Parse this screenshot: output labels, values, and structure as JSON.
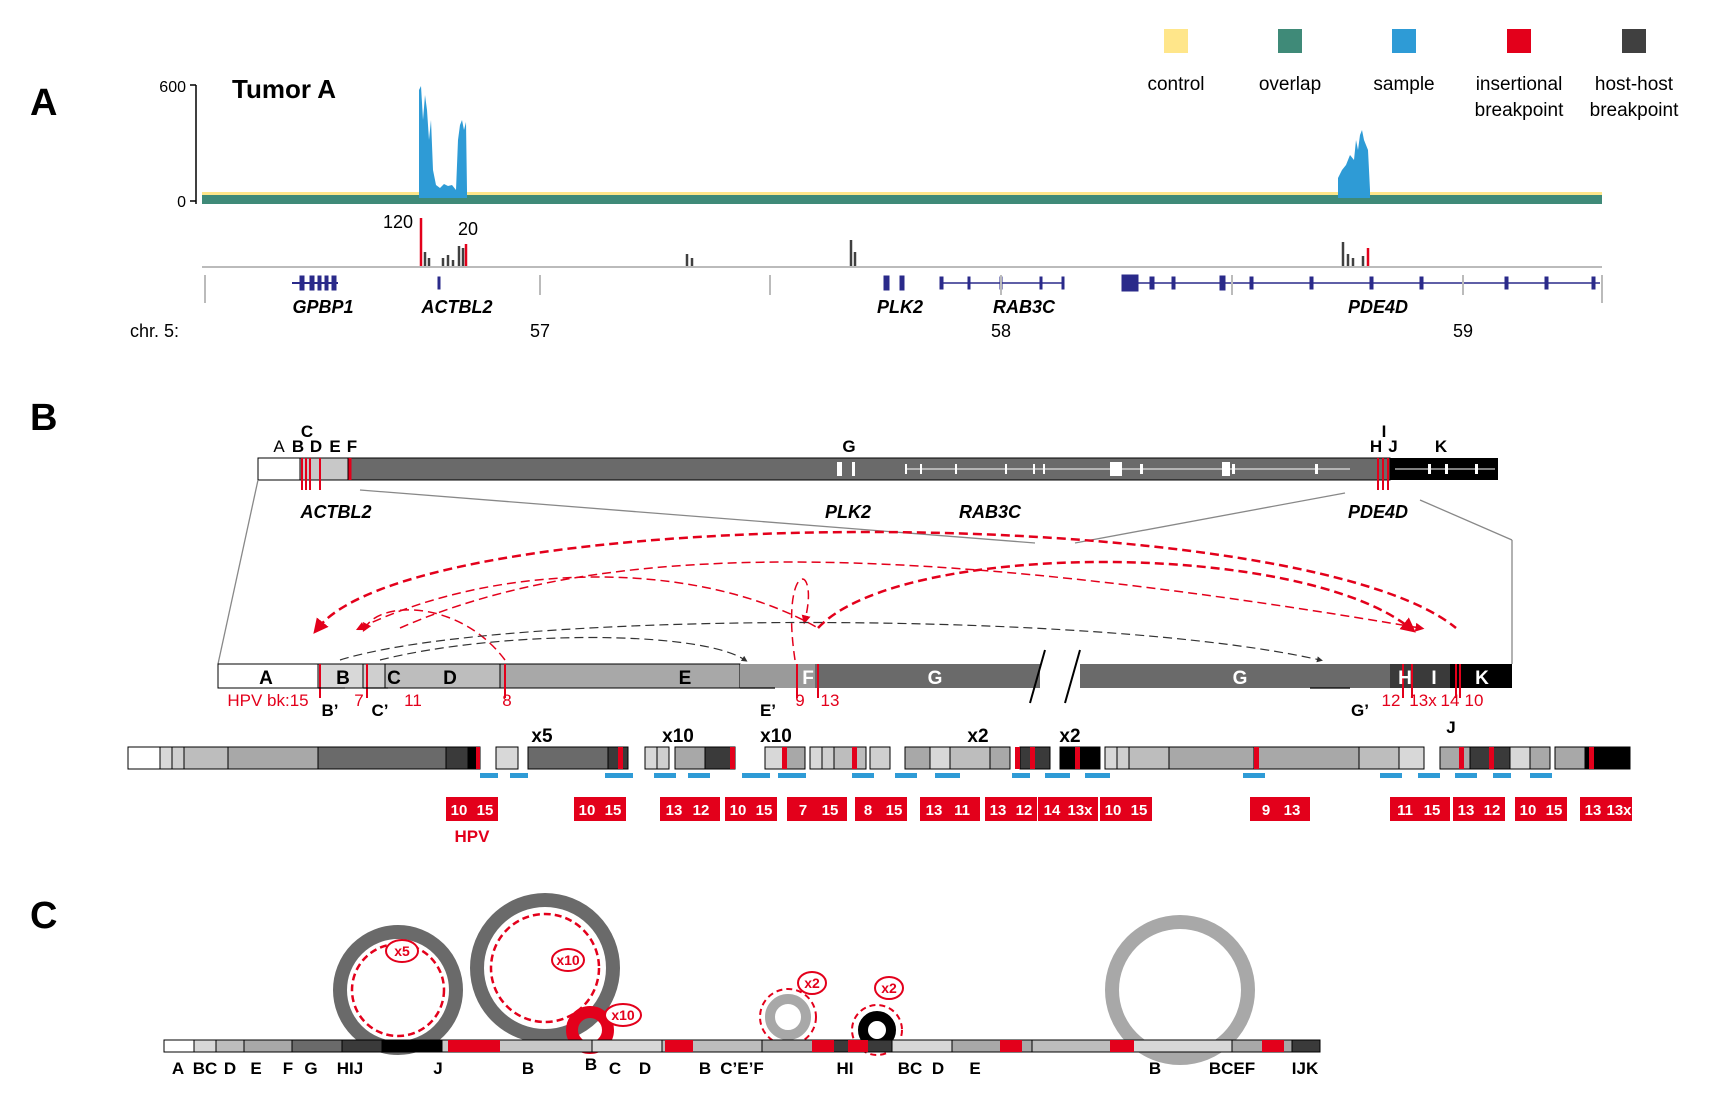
{
  "panel_labels": [
    "A",
    "B",
    "C"
  ],
  "panelA": {
    "title": "Tumor A",
    "y_ticks": [
      "600",
      "0"
    ],
    "breakpoint_counts": [
      "120",
      "20"
    ],
    "genes": [
      "GPBP1",
      "ACTBL2",
      "PLK2",
      "RAB3C",
      "PDE4D"
    ],
    "chr_label": "chr. 5:",
    "chr_ticks": [
      "57",
      "58",
      "59"
    ],
    "legend": [
      {
        "label": "control",
        "color": "#ffe68a"
      },
      {
        "label": "overlap",
        "color": "#3f8a78"
      },
      {
        "label": "sample",
        "color": "#2e9bd6"
      },
      {
        "label": "insertional",
        "label2": "breakpoint",
        "color": "#e3001b"
      },
      {
        "label": "host-host",
        "label2": "breakpoint",
        "color": "#404040"
      }
    ]
  },
  "chart_data": {
    "type": "area",
    "title": "Tumor A",
    "ylim": [
      0,
      600
    ],
    "series": [
      {
        "name": "sample",
        "peaks": [
          {
            "gene": "ACTBL2 left",
            "values": [
              550,
              600,
              420,
              300
            ]
          },
          {
            "gene": "ACTBL2 right",
            "values": [
              400,
              420,
              380
            ]
          },
          {
            "gene": "PDE4D",
            "values": [
              120,
              200,
              300,
              370,
              400
            ]
          }
        ]
      },
      {
        "name": "control",
        "baseline": 8
      },
      {
        "name": "overlap",
        "baseline": 6
      }
    ],
    "breakpoint_labels": [
      "120",
      "20"
    ]
  },
  "panelB": {
    "top_segments": [
      "A",
      "B",
      "C",
      "D",
      "E",
      "F",
      "G",
      "H",
      "I",
      "J",
      "K"
    ],
    "top_genes": [
      "ACTBL2",
      "PLK2",
      "RAB3C",
      "PDE4D"
    ],
    "bottom_segments": [
      "A",
      "B",
      "C",
      "D",
      "E",
      "F",
      "G",
      "G",
      "H",
      "I",
      "K"
    ],
    "primes": [
      "B’",
      "C’",
      "E’",
      "G’",
      "J"
    ],
    "bk_label": "HPV bk:15",
    "bk_numbers": [
      "7",
      "11",
      "8",
      "9",
      "13",
      "12",
      "13x",
      "14",
      "10"
    ],
    "multipliers": [
      "x5",
      "x10",
      "x10",
      "x2",
      "x2"
    ],
    "hpv_label": "HPV",
    "hpv_pairs": [
      [
        "10",
        "15"
      ],
      [
        "10",
        "15"
      ],
      [
        "13",
        "12"
      ],
      [
        "10",
        "15"
      ],
      [
        "7",
        "15"
      ],
      [
        "8",
        "15"
      ],
      [
        "13",
        "11"
      ],
      [
        "13",
        "12"
      ],
      [
        "14",
        "13x"
      ],
      [
        "10",
        "15"
      ],
      [
        "9",
        "13"
      ],
      [
        "11",
        "15"
      ],
      [
        "13",
        "12"
      ],
      [
        "10",
        "15"
      ],
      [
        "13",
        "13x"
      ]
    ]
  },
  "panelC": {
    "labels": [
      "A",
      "BC",
      "D",
      "E",
      "F",
      "G",
      "HIJ",
      "J",
      "B",
      "B",
      "C",
      "D",
      "B",
      "C’E’F",
      "HI",
      "BC",
      "D",
      "E",
      "B",
      "BCEF",
      "IJK"
    ],
    "multipliers": [
      "x5",
      "x10",
      "x10",
      "x2",
      "x2"
    ]
  }
}
